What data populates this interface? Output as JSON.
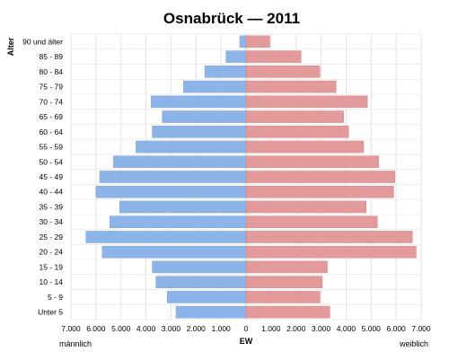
{
  "chart_data": {
    "type": "bar",
    "orientation": "horizontal",
    "layout": "population-pyramid",
    "title": "Osnabrück — 2011",
    "ylabel": "Alter",
    "xlabel": "EW",
    "left_caption": "männlich",
    "right_caption": "weiblich",
    "xlim": [
      -7000,
      7000
    ],
    "x_ticks": [
      "7.000",
      "6.000",
      "5.000",
      "4.000",
      "3.000",
      "2.000",
      "1.000",
      "0",
      "1.000",
      "2.000",
      "3.000",
      "4.000",
      "5.000",
      "6.000",
      "7.000"
    ],
    "grid": true,
    "categories": [
      "90 und älter",
      "85 - 89",
      "80 - 84",
      "75 - 79",
      "70 - 74",
      "65 - 69",
      "60 - 64",
      "55 - 59",
      "50 - 54",
      "45 - 49",
      "40 - 44",
      "35 - 39",
      "30 - 34",
      "25 - 29",
      "20 - 24",
      "15 - 19",
      "10 - 14",
      "5 - 9",
      "Unter 5"
    ],
    "series": [
      {
        "side": "left",
        "color": "#8db4e8",
        "values": [
          250,
          800,
          1650,
          2500,
          3800,
          3350,
          3750,
          4400,
          5300,
          5850,
          6000,
          5050,
          5450,
          6400,
          5750,
          3750,
          3600,
          3150,
          2800
        ]
      },
      {
        "side": "right",
        "color": "#e39a9a",
        "values": [
          950,
          2200,
          2950,
          3600,
          4850,
          3900,
          4100,
          4700,
          5300,
          5950,
          5900,
          4800,
          5250,
          6650,
          6800,
          3250,
          3050,
          2950,
          3350
        ]
      }
    ]
  }
}
